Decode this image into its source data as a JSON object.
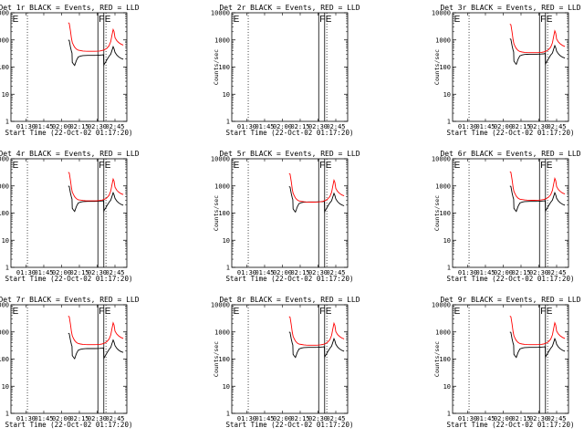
{
  "chart_data": {
    "type": "line",
    "xlabel": "Start Time (22-Oct-02 01:17:20)",
    "ylabel": "Counts/sec",
    "x_tick_labels": [
      "01:30",
      "01:45",
      "02:00",
      "02:15",
      "02:30",
      "02:45"
    ],
    "x_tick_minutes": [
      90,
      105,
      120,
      135,
      150,
      165
    ],
    "xlim_minutes": [
      77.33,
      175
    ],
    "y_tick_labels": [
      "1",
      "10",
      "100",
      "1000",
      "10000"
    ],
    "ylim": [
      1,
      10000
    ],
    "yscale": "log",
    "colors": {
      "events": "#000000",
      "lld": "#ff0000"
    },
    "panels": [
      {
        "title": "Det 1r BLACK = Events, RED = LLD",
        "has_data": true,
        "lld_scale": 1.35,
        "events_scale": 1.0,
        "markers": [
          {
            "text": "E",
            "minute": 77.8
          },
          {
            "text": "F",
            "minute": 150.6
          },
          {
            "text": "E",
            "minute": 155.6
          }
        ],
        "solid_lines_minutes": [
          150.6,
          155.6
        ],
        "dotted_lines_minutes": [
          91.2,
          157.4
        ]
      },
      {
        "title": "Det 2r BLACK = Events, RED = LLD",
        "has_data": false,
        "markers": [
          {
            "text": "E",
            "minute": 77.8
          },
          {
            "text": "F",
            "minute": 150.6
          },
          {
            "text": "E",
            "minute": 155.6
          }
        ],
        "solid_lines_minutes": [
          150.6,
          155.6
        ],
        "dotted_lines_minutes": [
          91.2,
          157.4
        ]
      },
      {
        "title": "Det 3r BLACK = Events, RED = LLD",
        "has_data": true,
        "lld_scale": 1.2,
        "events_scale": 1.1,
        "markers": [
          {
            "text": "E",
            "minute": 77.8
          },
          {
            "text": "F",
            "minute": 150.6
          },
          {
            "text": "E",
            "minute": 155.6
          }
        ],
        "solid_lines_minutes": [
          150.6,
          155.6
        ],
        "dotted_lines_minutes": [
          91.2,
          157.4
        ]
      },
      {
        "title": "Det 4r BLACK = Events, RED = LLD",
        "has_data": true,
        "lld_scale": 1.0,
        "events_scale": 1.0,
        "markers": [
          {
            "text": "E",
            "minute": 77.8
          },
          {
            "text": "F",
            "minute": 150.6
          },
          {
            "text": "E",
            "minute": 155.6
          }
        ],
        "solid_lines_minutes": [
          150.6,
          155.6
        ],
        "dotted_lines_minutes": [
          91.2,
          157.4
        ]
      },
      {
        "title": "Det 5r BLACK = Events, RED = LLD",
        "has_data": true,
        "lld_scale": 0.9,
        "events_scale": 0.95,
        "markers": [
          {
            "text": "E",
            "minute": 77.8
          },
          {
            "text": "F",
            "minute": 150.6
          },
          {
            "text": "E",
            "minute": 155.6
          }
        ],
        "solid_lines_minutes": [
          150.6,
          155.6
        ],
        "dotted_lines_minutes": [
          91.2,
          157.4
        ]
      },
      {
        "title": "Det 6r BLACK = Events, RED = LLD",
        "has_data": true,
        "lld_scale": 1.05,
        "events_scale": 1.0,
        "markers": [
          {
            "text": "E",
            "minute": 77.8
          },
          {
            "text": "F",
            "minute": 150.6
          },
          {
            "text": "E",
            "minute": 155.6
          }
        ],
        "solid_lines_minutes": [
          150.6,
          155.6
        ],
        "dotted_lines_minutes": [
          91.2,
          157.4
        ]
      },
      {
        "title": "Det 7r BLACK = Events, RED = LLD",
        "has_data": true,
        "lld_scale": 1.2,
        "events_scale": 0.9,
        "markers": [
          {
            "text": "E",
            "minute": 77.8
          },
          {
            "text": "F",
            "minute": 150.6
          },
          {
            "text": "E",
            "minute": 155.6
          }
        ],
        "solid_lines_minutes": [
          150.6,
          155.6
        ],
        "dotted_lines_minutes": [
          91.2,
          157.4
        ]
      },
      {
        "title": "Det 8r BLACK = Events, RED = LLD",
        "has_data": true,
        "lld_scale": 1.15,
        "events_scale": 1.0,
        "markers": [
          {
            "text": "E",
            "minute": 77.8
          },
          {
            "text": "F",
            "minute": 150.6
          },
          {
            "text": "E",
            "minute": 155.6
          }
        ],
        "solid_lines_minutes": [
          150.6,
          155.6
        ],
        "dotted_lines_minutes": [
          91.2,
          157.4
        ]
      },
      {
        "title": "Det 9r BLACK = Events, RED = LLD",
        "has_data": true,
        "lld_scale": 1.2,
        "events_scale": 1.0,
        "markers": [
          {
            "text": "E",
            "minute": 77.8
          },
          {
            "text": "F",
            "minute": 150.6
          },
          {
            "text": "E",
            "minute": 155.6
          }
        ],
        "solid_lines_minutes": [
          150.6,
          155.6
        ],
        "dotted_lines_minutes": [
          91.2,
          157.4
        ]
      }
    ],
    "series_template": {
      "lld": {
        "x_minutes": [
          125.6,
          126.5,
          127.5,
          128.3,
          129.0,
          130.0,
          131.0,
          132.5,
          134.0,
          136.0,
          138.0,
          140.0,
          142.0,
          144.0,
          146.0,
          148.0,
          150.0,
          152.0,
          154.0,
          156.0,
          158.0,
          160.0,
          161.5,
          162.5,
          163.5,
          164.2,
          165.0,
          166.5,
          168.0,
          170.0,
          172.0
        ],
        "values": [
          3200,
          3000,
          1600,
          850,
          600,
          480,
          400,
          340,
          310,
          300,
          290,
          285,
          283,
          282,
          282,
          283,
          285,
          290,
          300,
          320,
          360,
          450,
          650,
          1100,
          1800,
          1500,
          900,
          700,
          600,
          520,
          480
        ]
      },
      "events": {
        "x_minutes": [
          125.6,
          126.5,
          127.5,
          128.3,
          128.8,
          129.0,
          130.0,
          131.0,
          132.5,
          134.0,
          136.0,
          138.0,
          140.0,
          142.0,
          144.0,
          146.0,
          148.0,
          150.0,
          152.0,
          154.0,
          155.4,
          155.6,
          157.0,
          158.5,
          160.0,
          161.5,
          162.5,
          163.5,
          164.2,
          165.0,
          166.5,
          168.0,
          170.0,
          172.0
        ],
        "values": [
          1000,
          950,
          550,
          380,
          330,
          150,
          130,
          115,
          175,
          235,
          255,
          265,
          268,
          270,
          270,
          270,
          270,
          272,
          275,
          280,
          285,
          120,
          150,
          195,
          250,
          300,
          410,
          560,
          470,
          350,
          280,
          240,
          210,
          195
        ]
      }
    }
  }
}
